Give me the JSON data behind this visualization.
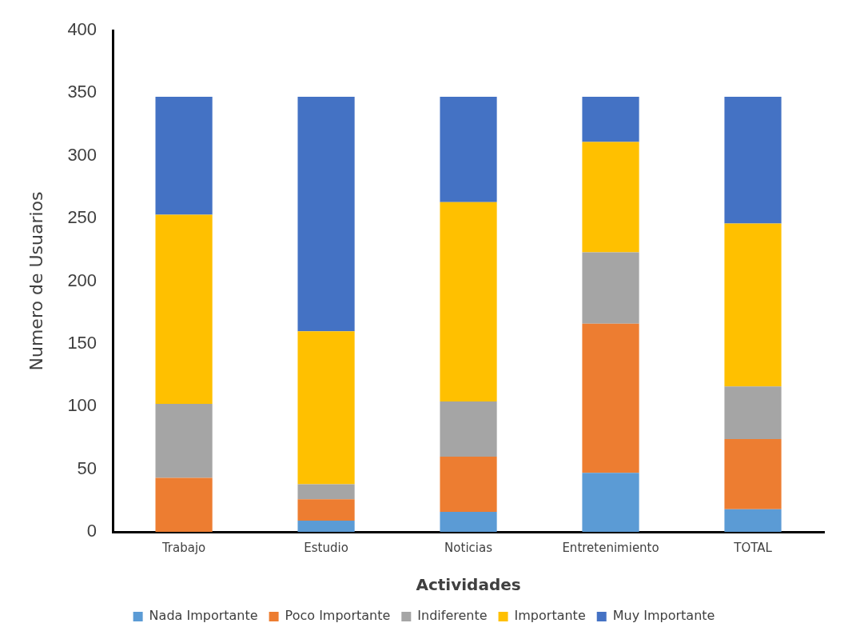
{
  "chart_data": {
    "type": "bar",
    "stacked": true,
    "xlabel": "Actividades",
    "ylabel": "Numero de Usuarios",
    "categories": [
      "Trabajo",
      "Estudio",
      "Noticias",
      "Entretenimiento",
      "TOTAL"
    ],
    "series": [
      {
        "name": "Nada Importante",
        "color": "#5b9bd5",
        "values": [
          0,
          9,
          16,
          47,
          18
        ]
      },
      {
        "name": "Poco Importante",
        "color": "#ed7d31",
        "values": [
          43,
          17,
          44,
          119,
          56
        ]
      },
      {
        "name": "Indiferente",
        "color": "#a5a5a5",
        "values": [
          59,
          12,
          44,
          57,
          42
        ]
      },
      {
        "name": "Importante",
        "color": "#ffc000",
        "values": [
          151,
          122,
          159,
          88,
          130
        ]
      },
      {
        "name": "Muy Importante",
        "color": "#4472c4",
        "values": [
          94,
          187,
          84,
          36,
          101
        ]
      }
    ],
    "ylim": [
      0,
      400
    ],
    "yticks": [
      0,
      50,
      100,
      150,
      200,
      250,
      300,
      350,
      400
    ],
    "grid": false,
    "legend": "bottom"
  }
}
